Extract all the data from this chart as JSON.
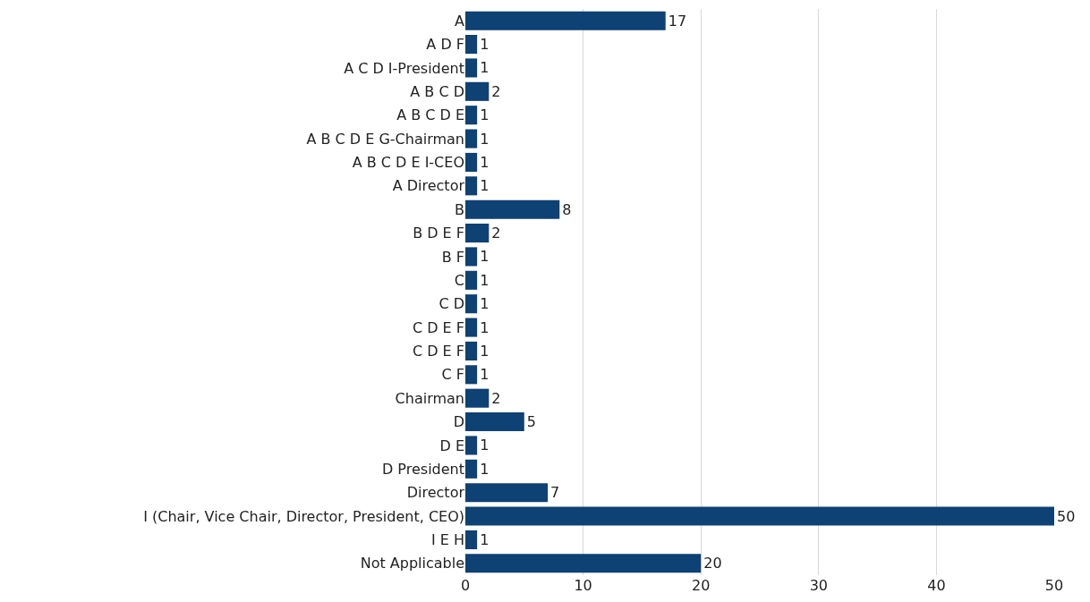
{
  "chart_data": {
    "type": "bar",
    "orientation": "horizontal",
    "categories": [
      "A",
      "A D F",
      "A C D I-President",
      "A B C D",
      "A B C D E",
      "A B C D E G-Chairman",
      "A B C D E I-CEO",
      "A Director",
      "B",
      "B D E F",
      "B F",
      "C",
      "C D",
      "C D E F",
      "C D E F",
      "C F",
      "Chairman",
      "D",
      "D E",
      "D President",
      "Director",
      "I (Chair, Vice Chair, Director, President, CEO)",
      "I E H",
      "Not Applicable"
    ],
    "values": [
      17,
      1,
      1,
      2,
      1,
      1,
      1,
      1,
      8,
      2,
      1,
      1,
      1,
      1,
      1,
      1,
      2,
      5,
      1,
      1,
      7,
      50,
      1,
      20
    ],
    "color": "#0e4174",
    "xlim": [
      0,
      50
    ],
    "xticks": [
      0,
      10,
      20,
      30,
      40,
      50
    ],
    "grid": "x",
    "data_labels": true
  }
}
